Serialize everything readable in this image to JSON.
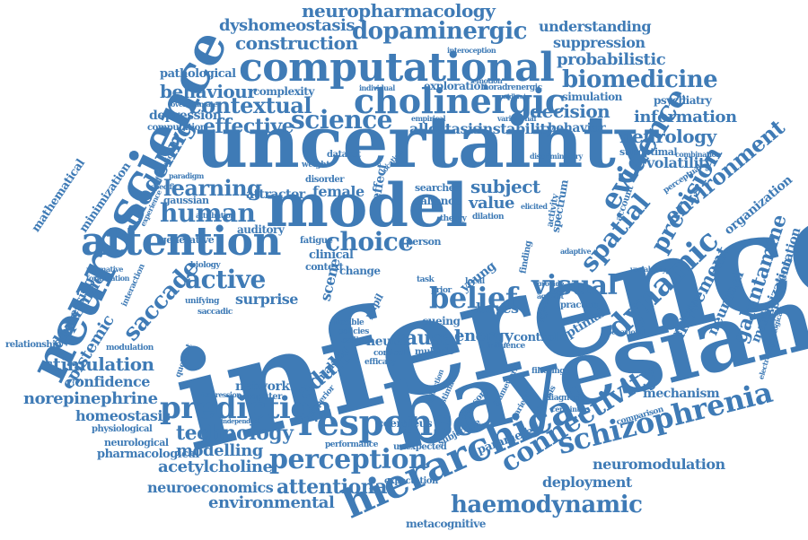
{
  "colors": {
    "word": "#3f7bb6",
    "word_dark": "#2f6aa5",
    "background": "#ffffff"
  },
  "words": [
    "inference",
    "bayesian",
    "uncertainty",
    "model",
    "neuroscience",
    "attention",
    "computational",
    "hierarchical",
    "response",
    "cholinergic",
    "prediction",
    "perception",
    "schizophrenia",
    "haemodynamic",
    "connectivity",
    "dynamic",
    "evidence",
    "spatial",
    "precision",
    "environment",
    "belief",
    "visual",
    "human",
    "choice",
    "active",
    "saccade",
    "modeling",
    "science",
    "learning",
    "contextual",
    "effective",
    "behaviour",
    "construction",
    "dopaminergic",
    "neuropharmacology",
    "dyshomeostasis",
    "biomedicine",
    "probabilistic",
    "suppression",
    "understanding",
    "decision",
    "information",
    "neurology",
    "volatility",
    "psychiatry",
    "adult",
    "causal",
    "energy",
    "value",
    "subject",
    "stimulation",
    "confidence",
    "norepinephrine",
    "homeostasis",
    "pharmacological",
    "modelling",
    "acetylcholine",
    "technology",
    "neuroeconomics",
    "attentional",
    "environmental",
    "deployment",
    "neuromodulation",
    "mechanism",
    "metacognitive",
    "galantamine",
    "movement",
    "neuronal",
    "maximization",
    "representation",
    "organization",
    "dopamine",
    "epistemic",
    "processing",
    "mathematical",
    "minimization",
    "surprise",
    "network",
    "neural",
    "mechanism",
    "depression",
    "computation",
    "pathological",
    "complexity",
    "exploration",
    "simulation",
    "allostasis",
    "instability",
    "behavior",
    "suboptimal",
    "female",
    "attractor",
    "auditory",
    "generative",
    "gaussian",
    "salience",
    "scene",
    "clinical",
    "context",
    "young",
    "bayes",
    "cueing",
    "optimal",
    "control",
    "coeruleus",
    "performance",
    "unexpected",
    "expectation",
    "parameter",
    "subjective",
    "sensory",
    "relationship",
    "modulation",
    "physiological",
    "neurological",
    "interaction",
    "unifying",
    "saccadic",
    "biology",
    "normative",
    "formulation",
    "interoception",
    "individual",
    "empirical",
    "quotient",
    "computer",
    "superior",
    "multiple",
    "cortical",
    "efficacy",
    "predictive",
    "agent",
    "practice",
    "collicularly",
    "comparison",
    "diagnosis",
    "framework",
    "estimate",
    "making",
    "fatigue",
    "searches",
    "dataset",
    "disorder",
    "weight",
    "effect",
    "task",
    "person",
    "theory",
    "dilation",
    "spectrum",
    "account",
    "finding",
    "adaptive",
    "perceptual",
    "combination",
    "variability",
    "electrophysiological",
    "influence",
    "behavioral",
    "parietal",
    "sclerosis",
    "certainty",
    "filtering",
    "policies",
    "coding",
    "flexible",
    "change",
    "pupil",
    "prior",
    "local",
    "provide",
    "agonist",
    "overestimate",
    "paradigm",
    "specific",
    "functional",
    "experience",
    "attribution",
    "hypothesi",
    "impression",
    "independent",
    "addiction",
    "fluctuation",
    "emotion",
    "noradrenergic",
    "variational",
    "midbrain",
    "discriminatory",
    "previous",
    "adjustment",
    "elicited",
    "activity",
    "plasticity",
    "spatial",
    "location",
    "principle",
    "cognitive",
    "standard",
    "affect"
  ]
}
